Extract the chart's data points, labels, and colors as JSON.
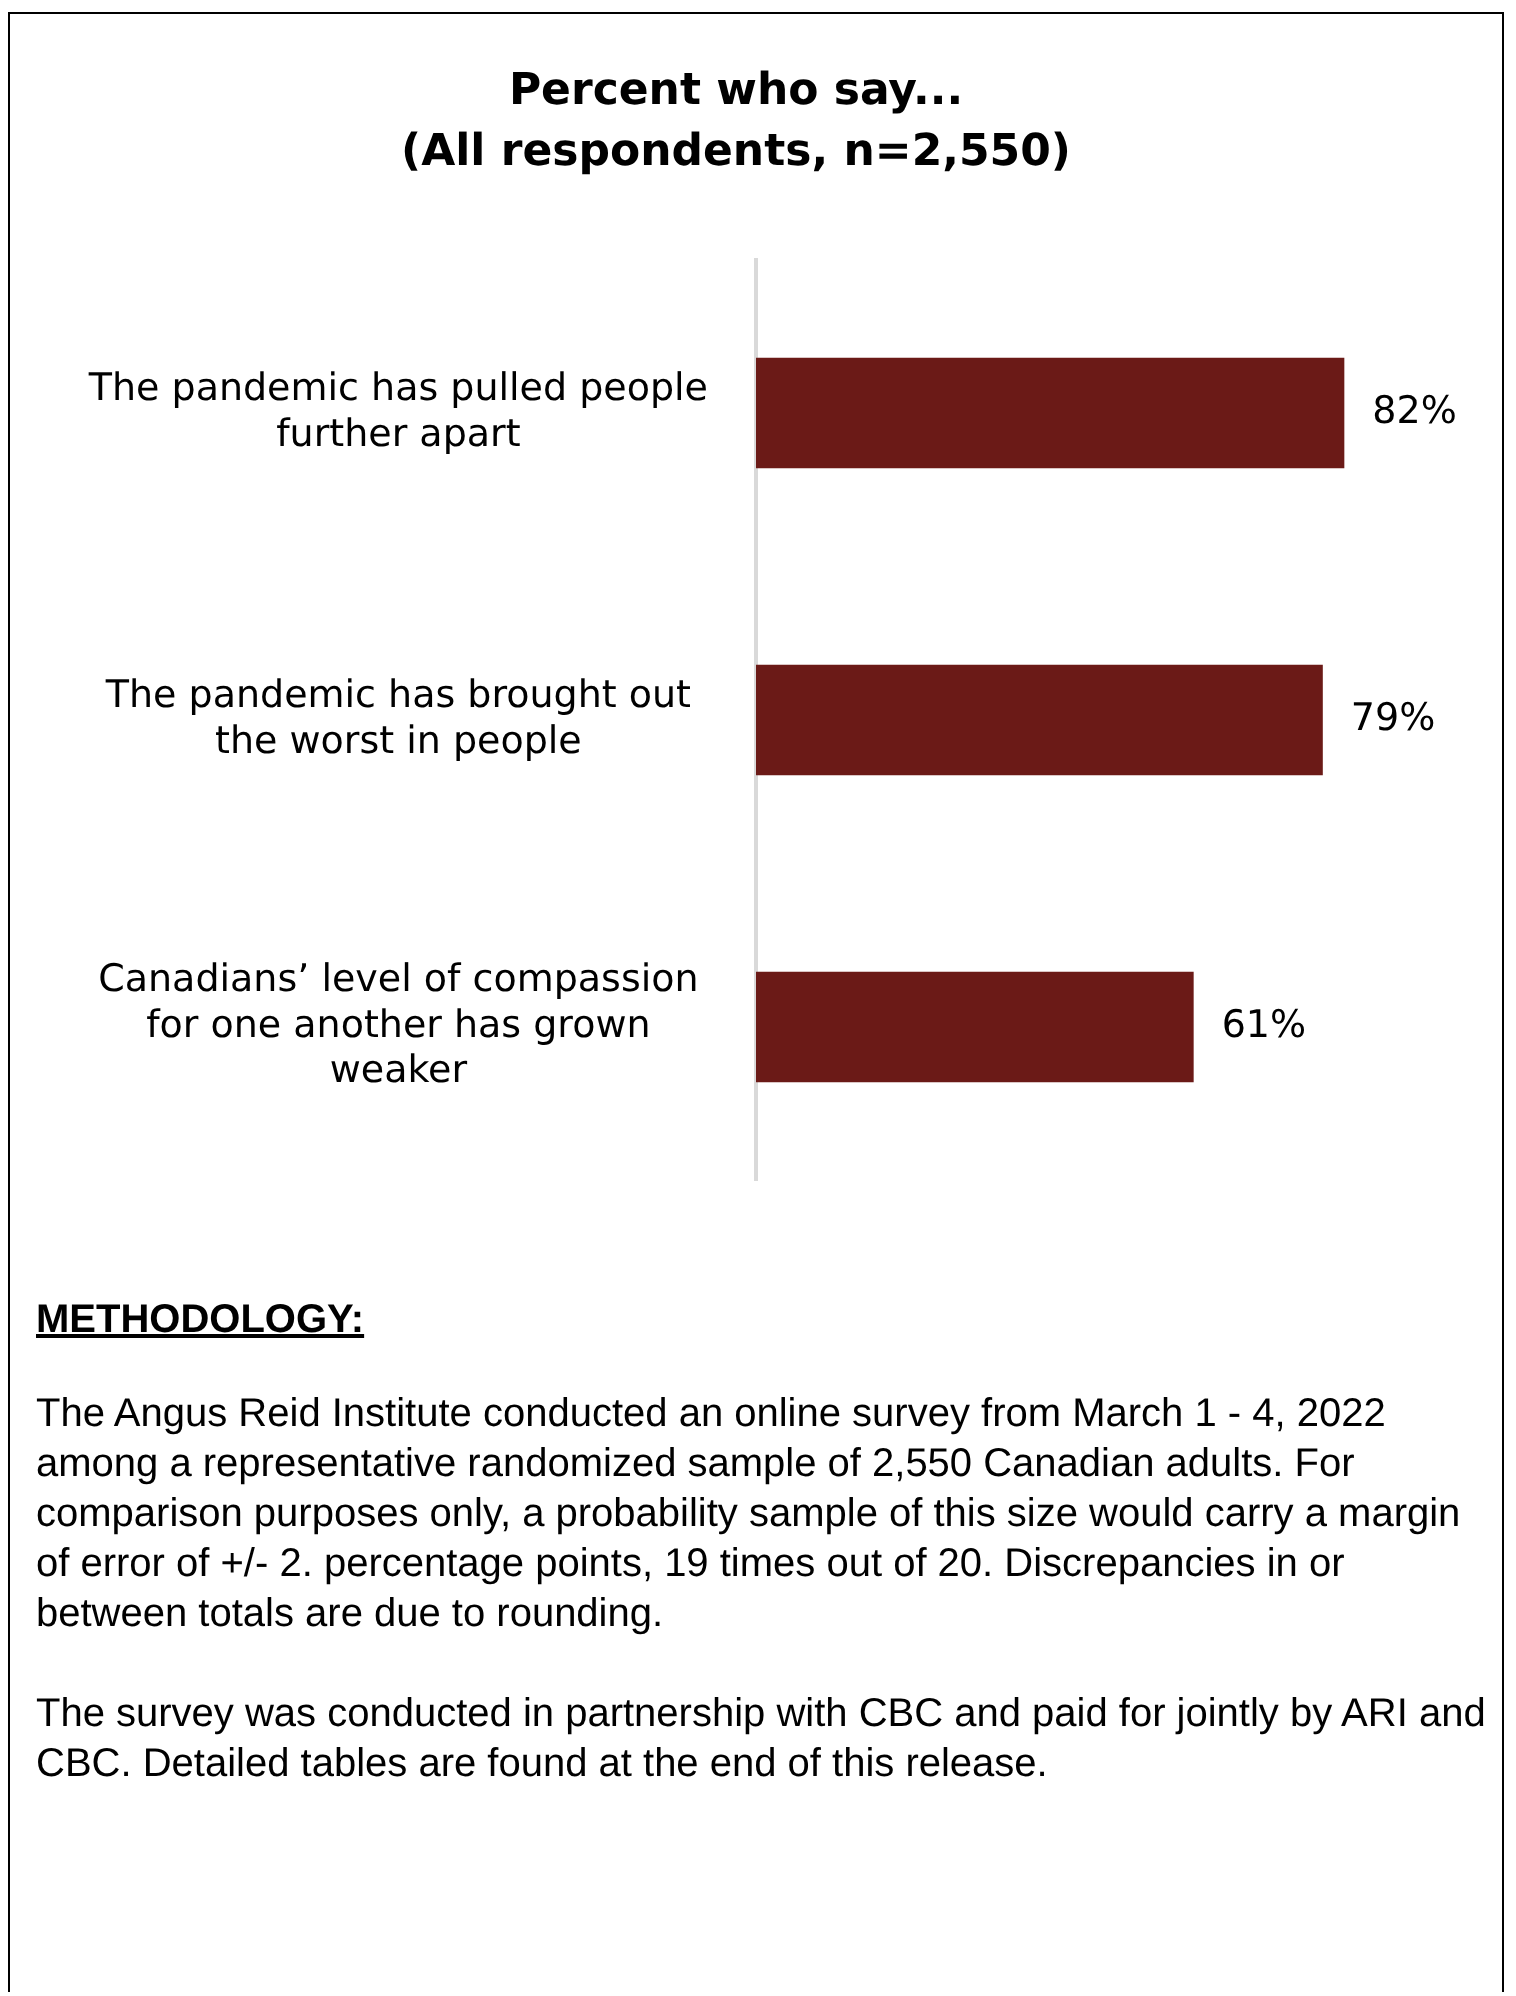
{
  "chart_data": {
    "type": "bar",
    "orientation": "horizontal",
    "title": "Percent who say...",
    "subtitle": "(All respondents, n=2,550)",
    "categories": [
      "The pandemic has pulled people further apart",
      "The pandemic has brought out the worst in people",
      "Canadians’ level of compassion for one another has grown weaker"
    ],
    "values": [
      82,
      79,
      61
    ],
    "color": "#6b1a17",
    "value_labels": [
      "82%",
      "79%",
      "61%"
    ],
    "legend": false,
    "tick_labels": "y",
    "annotations": [
      "METHODOLOGY:",
      "The Angus Reid Institute conducted an online survey from March 1 - 4, 2022 among a representative randomized sample of 2,550 Canadian adults. For comparison purposes only, a probability sample of this size would carry a margin of error of +/- 2. percentage points, 19 times out of 20. Discrepancies in or between totals are due to rounding.",
      "The survey was conducted in partnership with CBC and paid for jointly by ARI and CBC. Detailed tables are found at the end of this release."
    ]
  }
}
